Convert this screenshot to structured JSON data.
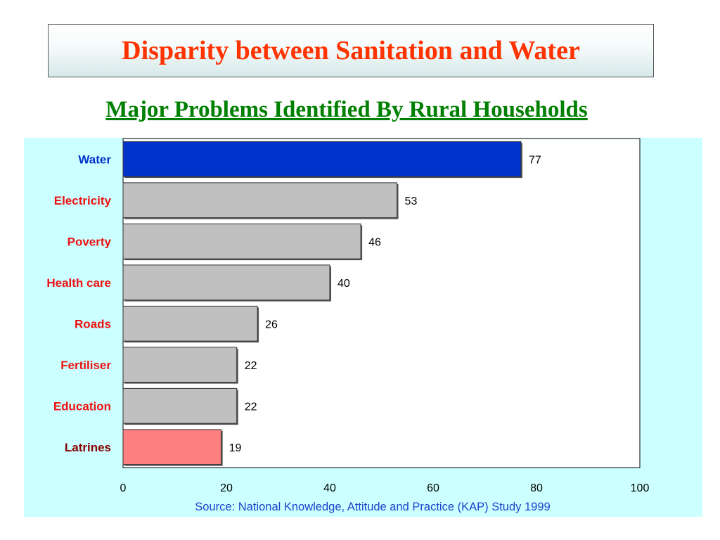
{
  "header": {
    "title": "Disparity between Sanitation and Water",
    "subtitle": "Major Problems Identified By Rural Households"
  },
  "source": "Source: National Knowledge, Attitude and Practice (KAP) Study 1999",
  "colors": {
    "title": "#ff3300",
    "subtitle": "#008000",
    "panel_background": "#ccffff",
    "water_bar": "#0033cc",
    "default_bar": "#c0c0c0",
    "latrines_bar": "#ff8080",
    "water_label": "#0033cc",
    "default_label": "#ee1111",
    "latrines_label": "#880000",
    "source_text": "#1a44cc"
  },
  "chart_data": {
    "type": "bar",
    "orientation": "horizontal",
    "title": "Major Problems Identified By Rural Households",
    "categories": [
      "Water",
      "Electricity",
      "Poverty",
      "Health care",
      "Roads",
      "Fertiliser",
      "Education",
      "Latrines"
    ],
    "values": [
      77,
      53,
      46,
      40,
      26,
      22,
      22,
      19
    ],
    "data_labels": [
      "77",
      "53",
      "46",
      "40",
      "26",
      "22",
      "22",
      "19"
    ],
    "xlim": [
      0,
      100
    ],
    "xticks": [
      0,
      20,
      40,
      60,
      80,
      100
    ],
    "xlabel": "",
    "ylabel": "",
    "grid": false,
    "legend": "none"
  }
}
